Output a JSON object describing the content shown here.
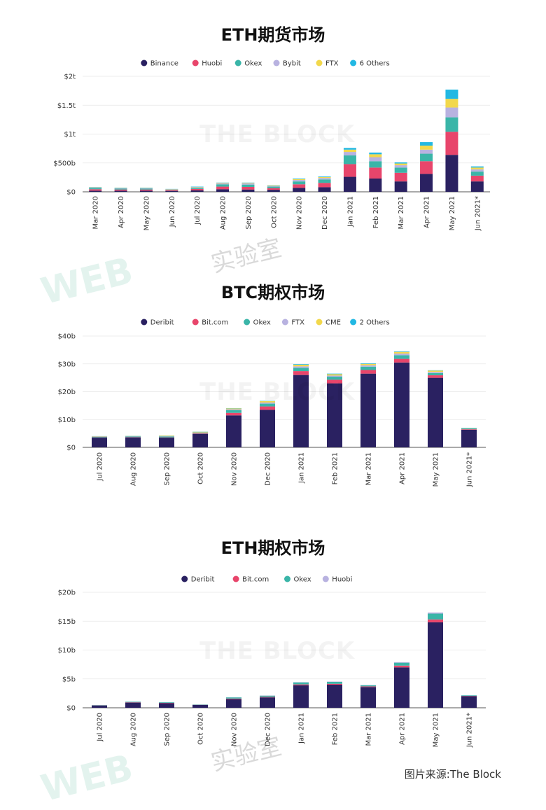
{
  "charts": [
    {
      "title": "ETH期货市场",
      "chart_data": {
        "type": "bar",
        "stacked": true,
        "categories": [
          "Mar 2020",
          "Apr 2020",
          "May 2020",
          "Jun 2020",
          "Jul 2020",
          "Aug 2020",
          "Sep 2020",
          "Oct 2020",
          "Nov 2020",
          "Dec 2020",
          "Jan 2021",
          "Feb 2021",
          "Mar 2021",
          "Apr 2021",
          "May 2021",
          "Jun 2021*"
        ],
        "series": [
          {
            "name": "Binance",
            "color": "#2a2161",
            "values": [
              20,
              20,
              20,
              15,
              25,
              45,
              40,
              35,
              70,
              80,
              260,
              230,
              180,
              310,
              640,
              180
            ]
          },
          {
            "name": "Huobi",
            "color": "#e8456b",
            "values": [
              25,
              20,
              20,
              15,
              25,
              45,
              45,
              30,
              60,
              75,
              220,
              190,
              150,
              220,
              400,
              100
            ]
          },
          {
            "name": "Okex",
            "color": "#3ab5a8",
            "values": [
              20,
              15,
              15,
              10,
              20,
              40,
              40,
              25,
              50,
              60,
              150,
              110,
              90,
              130,
              250,
              70
            ]
          },
          {
            "name": "Bybit",
            "color": "#b8b2e0",
            "values": [
              10,
              8,
              8,
              5,
              10,
              15,
              20,
              10,
              25,
              25,
              60,
              70,
              40,
              70,
              170,
              40
            ]
          },
          {
            "name": "FTX",
            "color": "#f2d84c",
            "values": [
              5,
              5,
              5,
              3,
              5,
              10,
              10,
              10,
              15,
              15,
              40,
              50,
              30,
              70,
              150,
              30
            ]
          },
          {
            "name": "6 Others",
            "color": "#22b8e3",
            "values": [
              5,
              5,
              5,
              2,
              5,
              5,
              5,
              5,
              10,
              10,
              30,
              30,
              20,
              60,
              160,
              20
            ]
          }
        ],
        "yticks": [
          "$0",
          "$500b",
          "$1t",
          "$1.5t",
          "$2t"
        ],
        "ylim": [
          0,
          2000
        ],
        "grid": true,
        "legend": "top-center"
      }
    },
    {
      "title": "BTC期权市场",
      "chart_data": {
        "type": "bar",
        "stacked": true,
        "categories": [
          "Jul 2020",
          "Aug 2020",
          "Sep 2020",
          "Oct 2020",
          "Nov 2020",
          "Dec 2020",
          "Jan 2021",
          "Feb 2021",
          "Mar 2021",
          "Apr 2021",
          "May 2021",
          "Jun 2021*"
        ],
        "series": [
          {
            "name": "Deribit",
            "color": "#2a2161",
            "values": [
              3.5,
              3.6,
              3.5,
              4.8,
              11.5,
              13.5,
              26,
              23,
              26.5,
              30.5,
              25,
              6.3
            ]
          },
          {
            "name": "Bit.com",
            "color": "#e8456b",
            "values": [
              0.1,
              0.1,
              0.1,
              0.2,
              0.9,
              1.2,
              1.4,
              1.3,
              1.3,
              1.3,
              0.9,
              0.2
            ]
          },
          {
            "name": "Okex",
            "color": "#3ab5a8",
            "values": [
              0.2,
              0.2,
              0.3,
              0.3,
              1.0,
              1.0,
              1.2,
              1.1,
              1.2,
              1.3,
              0.8,
              0.3
            ]
          },
          {
            "name": "FTX",
            "color": "#b8b2e0",
            "values": [
              0.1,
              0.1,
              0.1,
              0.1,
              0.3,
              0.4,
              0.5,
              0.4,
              0.5,
              0.6,
              0.4,
              0.1
            ]
          },
          {
            "name": "CME",
            "color": "#f2d84c",
            "values": [
              0.1,
              0.1,
              0.2,
              0.2,
              0.3,
              0.5,
              0.6,
              0.5,
              0.5,
              0.6,
              0.5,
              0.1
            ]
          },
          {
            "name": "2 Others",
            "color": "#22b8e3",
            "values": [
              0.05,
              0.05,
              0.05,
              0.05,
              0.1,
              0.1,
              0.2,
              0.2,
              0.2,
              0.2,
              0.1,
              0.05
            ]
          }
        ],
        "yticks": [
          "$0",
          "$10b",
          "$20b",
          "$30b",
          "$40b"
        ],
        "ylim": [
          0,
          40
        ],
        "grid": true,
        "legend": "top-center"
      }
    },
    {
      "title": "ETH期权市场",
      "chart_data": {
        "type": "bar",
        "stacked": true,
        "categories": [
          "Jul 2020",
          "Aug 2020",
          "Sep 2020",
          "Oct 2020",
          "Nov 2020",
          "Dec 2020",
          "Jan 2021",
          "Feb 2021",
          "Mar 2021",
          "Apr 2021",
          "May 2021",
          "Jun 2021*"
        ],
        "series": [
          {
            "name": "Deribit",
            "color": "#2a2161",
            "values": [
              0.4,
              0.9,
              0.8,
              0.5,
              1.5,
              1.8,
              3.9,
              4.0,
              3.6,
              7.0,
              14.8,
              2.0
            ]
          },
          {
            "name": "Bit.com",
            "color": "#e8456b",
            "values": [
              0.02,
              0.05,
              0.05,
              0.02,
              0.1,
              0.1,
              0.15,
              0.15,
              0.1,
              0.3,
              0.5,
              0.05
            ]
          },
          {
            "name": "Okex",
            "color": "#3ab5a8",
            "values": [
              0.05,
              0.1,
              0.1,
              0.05,
              0.2,
              0.2,
              0.35,
              0.35,
              0.2,
              0.5,
              1.0,
              0.1
            ]
          },
          {
            "name": "Huobi",
            "color": "#b8b2e0",
            "values": [
              0.01,
              0.02,
              0.02,
              0.01,
              0.03,
              0.03,
              0.05,
              0.05,
              0.05,
              0.1,
              0.2,
              0.02
            ]
          }
        ],
        "yticks": [
          "$0",
          "$5b",
          "$10b",
          "$15b",
          "$20b"
        ],
        "ylim": [
          0,
          20
        ],
        "grid": true,
        "legend": "top-center"
      }
    }
  ],
  "watermarks": {
    "the_block": "THE BLOCK",
    "web": "WEB",
    "lab": "实验室"
  },
  "source": "图片来源:The Block"
}
